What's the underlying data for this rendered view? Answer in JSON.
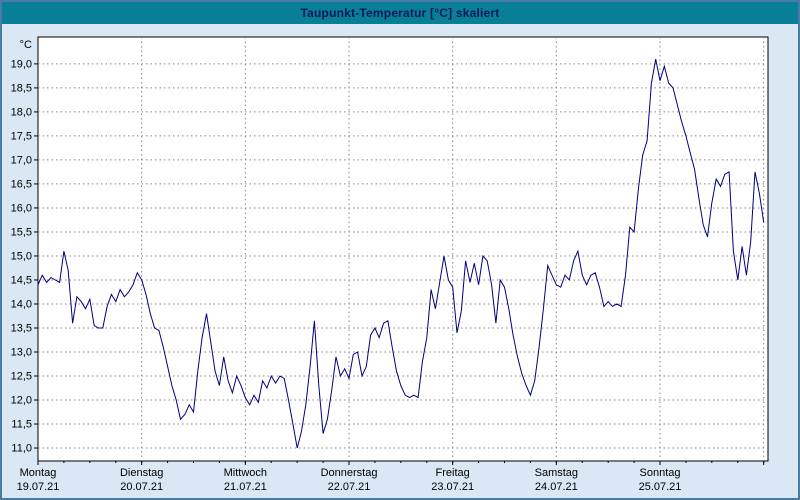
{
  "chart_data": {
    "type": "line",
    "title": "Taupunkt-Temperatur [°C] skaliert",
    "unit_label": "°C",
    "ylim": [
      10.73,
      19.56
    ],
    "ytick_min": 11.0,
    "ytick_max": 19.0,
    "ytick_step": 0.5,
    "xlim_hours": [
      0,
      169
    ],
    "day_ticks_hours": [
      0,
      24,
      48,
      72,
      96,
      120,
      144,
      168
    ],
    "minor_tick_step_hours": 6,
    "grid": "dashed",
    "legend": "none",
    "days": [
      {
        "name": "Montag",
        "date": "19.07.21"
      },
      {
        "name": "Dienstag",
        "date": "20.07.21"
      },
      {
        "name": "Mittwoch",
        "date": "21.07.21"
      },
      {
        "name": "Donnerstag",
        "date": "22.07.21"
      },
      {
        "name": "Freitag",
        "date": "23.07.21"
      },
      {
        "name": "Samstag",
        "date": "24.07.21"
      },
      {
        "name": "Sonntag",
        "date": "25.07.21"
      }
    ],
    "colors": {
      "line": "#000080",
      "grid": "#858585",
      "plot_bg": "#ffffff",
      "frame_bg": "#d9e8f4",
      "titlebar_bg": "#087f96",
      "title_text": "#001a5e",
      "border": "#4a7ba6",
      "axis": "#000000"
    },
    "series": [
      {
        "name": "Taupunkt-Temperatur",
        "x_hours": [
          0,
          1,
          2,
          3,
          4,
          5,
          6,
          7,
          8,
          9,
          10,
          11,
          12,
          13,
          14,
          15,
          16,
          17,
          18,
          19,
          20,
          21,
          22,
          23,
          24,
          25,
          26,
          27,
          28,
          29,
          30,
          31,
          32,
          33,
          34,
          35,
          36,
          37,
          38,
          39,
          40,
          41,
          42,
          43,
          44,
          45,
          46,
          47,
          48,
          49,
          50,
          51,
          52,
          53,
          54,
          55,
          56,
          57,
          58,
          59,
          60,
          61,
          62,
          63,
          64,
          65,
          66,
          67,
          68,
          69,
          70,
          71,
          72,
          73,
          74,
          75,
          76,
          77,
          78,
          79,
          80,
          81,
          82,
          83,
          84,
          85,
          86,
          87,
          88,
          89,
          90,
          91,
          92,
          93,
          94,
          95,
          96,
          97,
          98,
          99,
          100,
          101,
          102,
          103,
          104,
          105,
          106,
          107,
          108,
          109,
          110,
          111,
          112,
          113,
          114,
          115,
          116,
          117,
          118,
          119,
          120,
          121,
          122,
          123,
          124,
          125,
          126,
          127,
          128,
          129,
          130,
          131,
          132,
          133,
          134,
          135,
          136,
          137,
          138,
          139,
          140,
          141,
          142,
          143,
          144,
          145,
          146,
          147,
          148,
          149,
          150,
          151,
          152,
          153,
          154,
          155,
          156,
          157,
          158,
          159,
          160,
          161,
          162,
          163,
          164,
          165,
          166,
          167,
          168
        ],
        "y_celsius": [
          14.4,
          14.6,
          14.45,
          14.55,
          14.5,
          14.45,
          15.1,
          14.7,
          13.6,
          14.15,
          14.05,
          13.9,
          14.1,
          13.55,
          13.5,
          13.5,
          13.95,
          14.2,
          14.05,
          14.3,
          14.15,
          14.25,
          14.4,
          14.65,
          14.5,
          14.2,
          13.8,
          13.5,
          13.45,
          13.1,
          12.7,
          12.3,
          12.0,
          11.6,
          11.7,
          11.9,
          11.75,
          12.6,
          13.3,
          13.8,
          13.2,
          12.6,
          12.3,
          12.9,
          12.4,
          12.15,
          12.5,
          12.3,
          12.05,
          11.9,
          12.1,
          11.95,
          12.4,
          12.25,
          12.5,
          12.35,
          12.5,
          12.45,
          12.0,
          11.5,
          11.0,
          11.35,
          11.9,
          12.7,
          13.65,
          12.3,
          11.3,
          11.6,
          12.2,
          12.9,
          12.5,
          12.65,
          12.45,
          12.95,
          13.0,
          12.5,
          12.7,
          13.35,
          13.5,
          13.3,
          13.6,
          13.65,
          13.1,
          12.6,
          12.3,
          12.1,
          12.05,
          12.1,
          12.05,
          12.8,
          13.3,
          14.3,
          13.9,
          14.45,
          15.0,
          14.5,
          14.35,
          13.4,
          13.85,
          14.9,
          14.45,
          14.85,
          14.4,
          15.0,
          14.9,
          14.4,
          13.6,
          14.5,
          14.35,
          13.9,
          13.35,
          12.9,
          12.55,
          12.3,
          12.1,
          12.4,
          13.1,
          13.9,
          14.8,
          14.6,
          14.4,
          14.35,
          14.6,
          14.5,
          14.9,
          15.1,
          14.6,
          14.4,
          14.6,
          14.65,
          14.35,
          13.95,
          14.05,
          13.95,
          14.0,
          13.95,
          14.6,
          15.6,
          15.5,
          16.4,
          17.1,
          17.4,
          18.6,
          19.1,
          18.65,
          18.95,
          18.6,
          18.5,
          18.15,
          17.8,
          17.5,
          17.15,
          16.8,
          16.2,
          15.65,
          15.4,
          16.1,
          16.6,
          16.45,
          16.7,
          16.75,
          15.1,
          14.5,
          15.2,
          14.6,
          15.3,
          16.75,
          16.3,
          15.7
        ]
      }
    ]
  }
}
